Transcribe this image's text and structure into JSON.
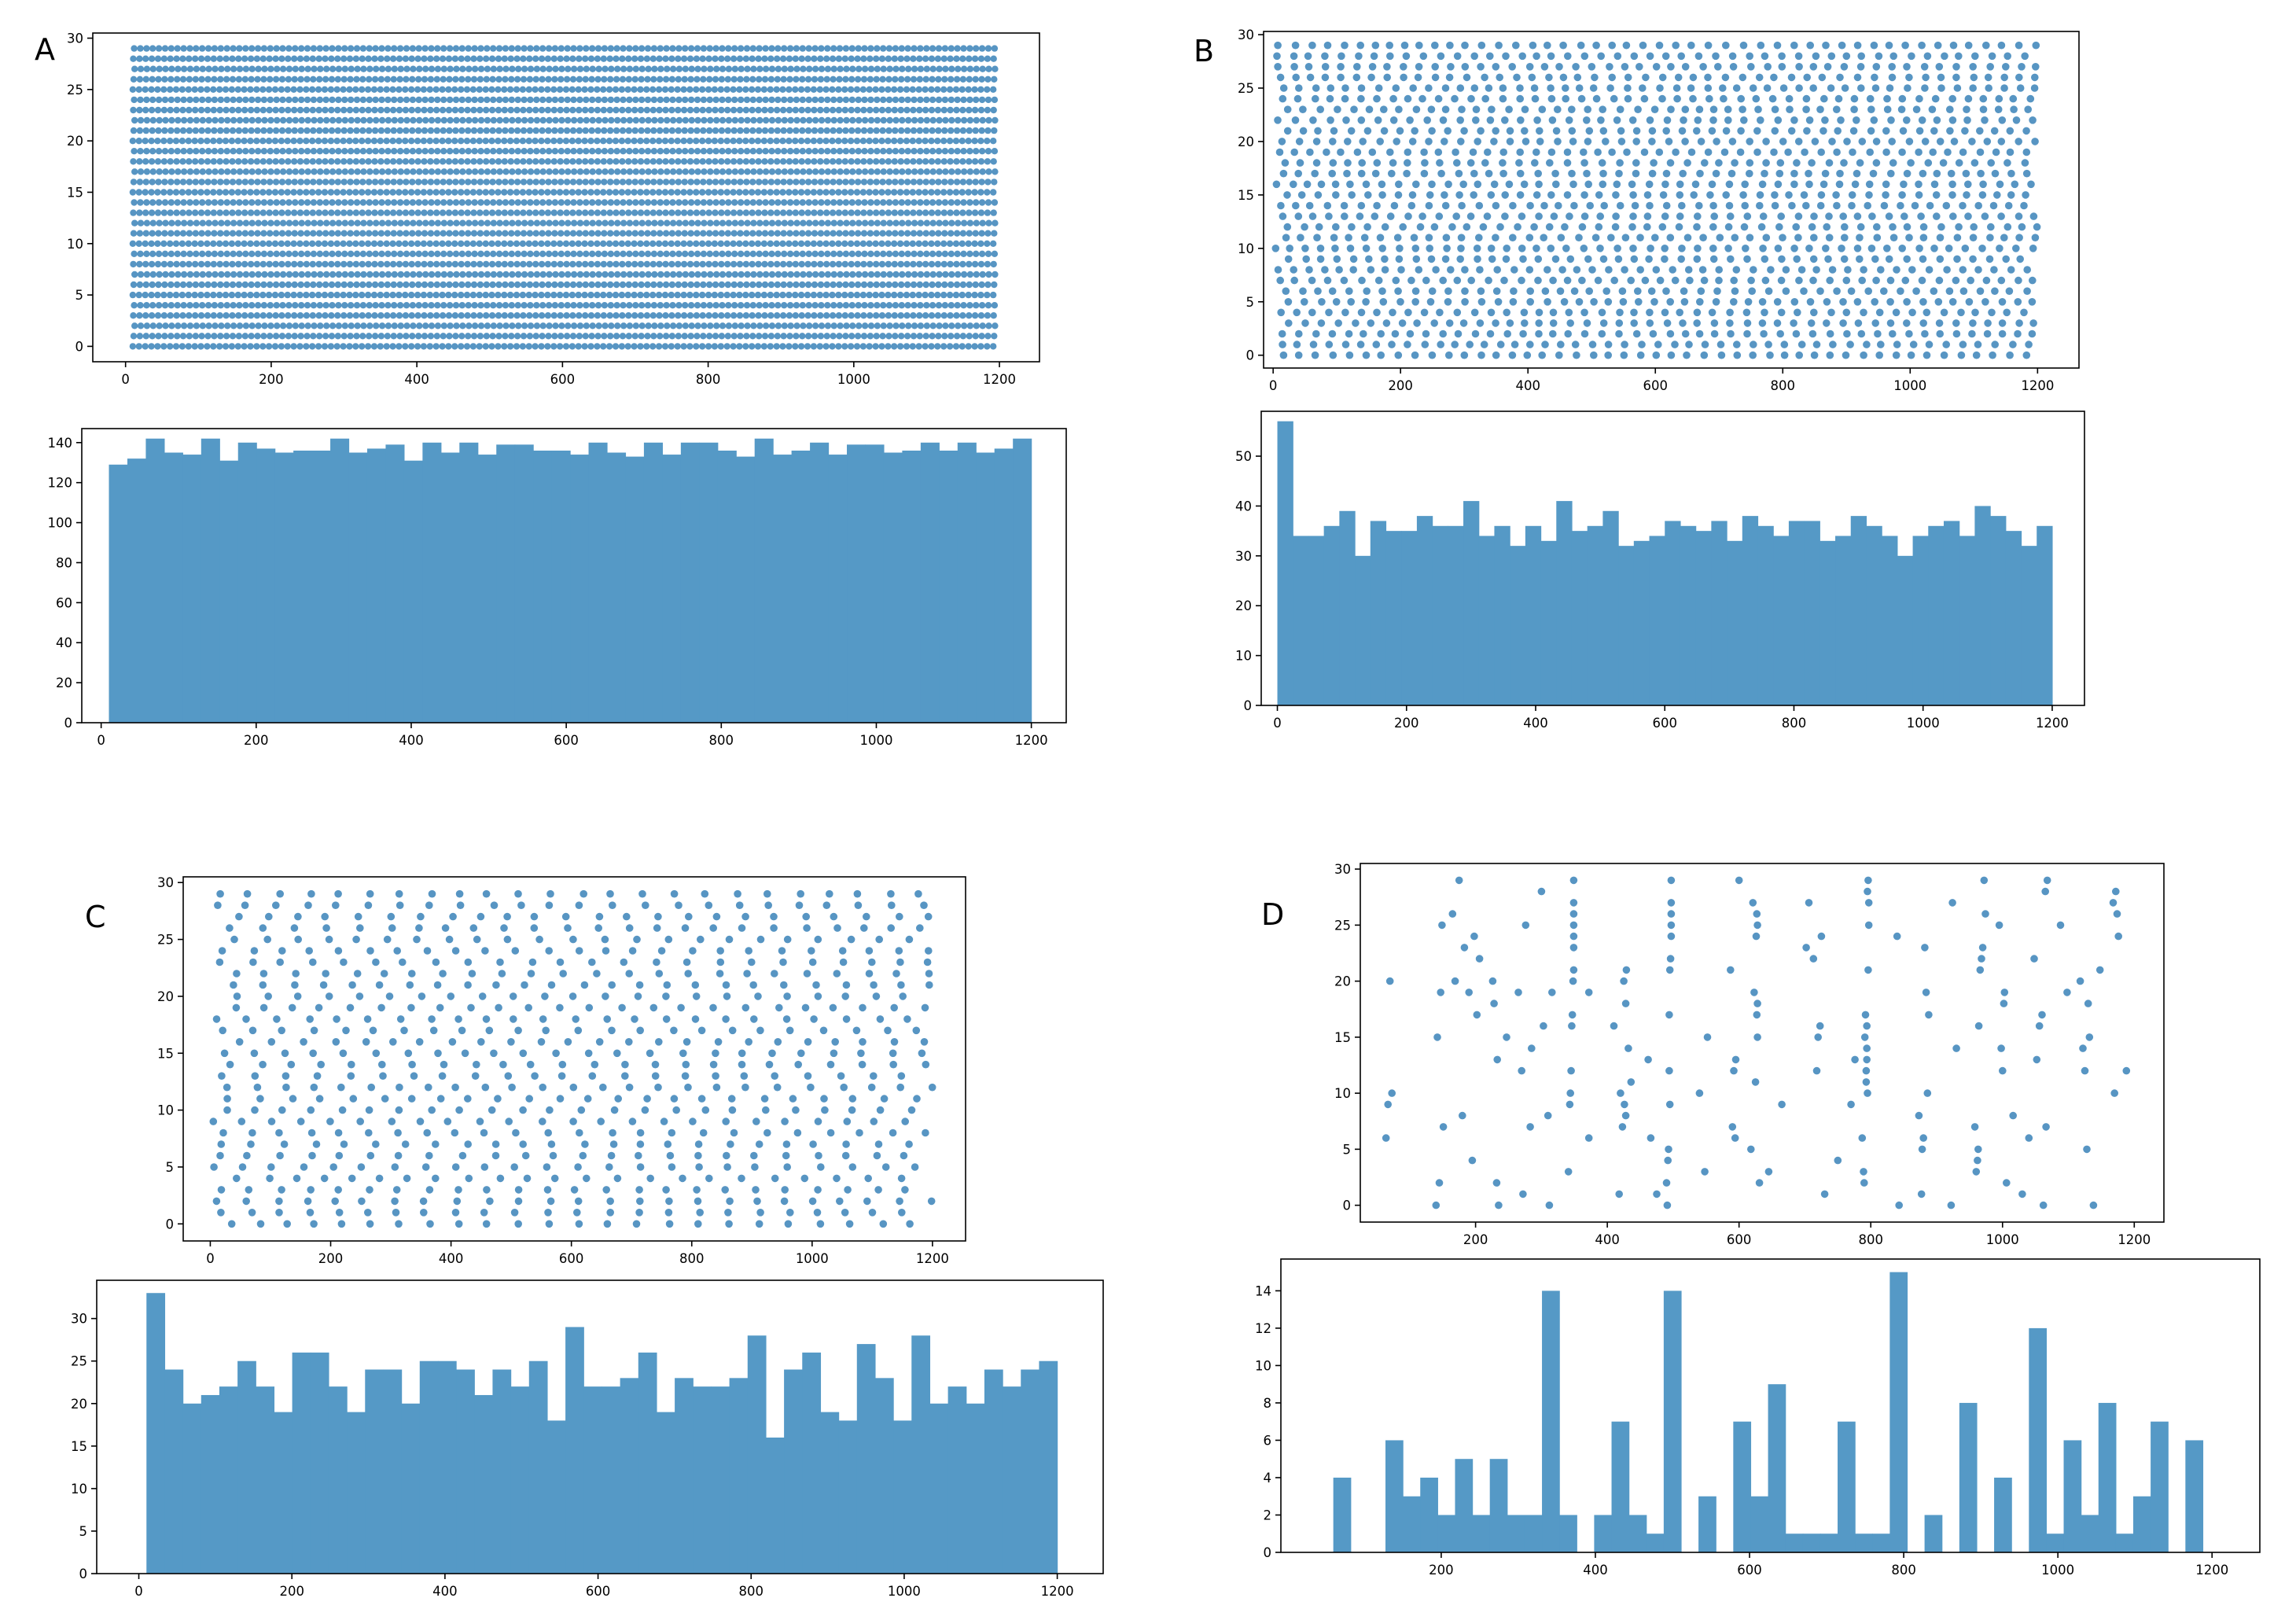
{
  "panel_labels": {
    "A": "A",
    "B": "B",
    "C": "C",
    "D": "D"
  },
  "chart_data": [
    {
      "panel": "A",
      "type": "scatter",
      "title": "",
      "xlabel": "",
      "ylabel": "",
      "xlim": [
        -45,
        1255
      ],
      "ylim": [
        -1.5,
        30.5
      ],
      "xticks": [
        0,
        200,
        400,
        600,
        800,
        1000,
        1200
      ],
      "yticks": [
        0,
        5,
        10,
        15,
        20,
        25,
        30
      ],
      "grid": false,
      "color": "#4e8fc0",
      "pattern": "regular lattice: one point every ~8.5 ms for each of the 30 neurons",
      "series": [
        {
          "y_range": [
            0,
            29
          ],
          "x_start": 10,
          "x_end": 1197,
          "spacing": 8.5
        }
      ]
    },
    {
      "panel": "A",
      "type": "bar",
      "title": "",
      "xlabel": "",
      "ylabel": "",
      "xlim": [
        -25,
        1245
      ],
      "ylim": [
        0,
        147
      ],
      "xticks": [
        0,
        200,
        400,
        600,
        800,
        1000,
        1200
      ],
      "yticks": [
        0,
        20,
        40,
        60,
        80,
        100,
        120,
        140
      ],
      "grid": false,
      "color": "#5599c6",
      "bin_edges_range": [
        10,
        1200
      ],
      "values": [
        129,
        132,
        142,
        135,
        134,
        142,
        131,
        140,
        137,
        135,
        136,
        136,
        142,
        135,
        137,
        139,
        131,
        140,
        135,
        140,
        134,
        139,
        139,
        136,
        136,
        134,
        140,
        135,
        133,
        140,
        134,
        140,
        140,
        136,
        133,
        142,
        134,
        136,
        140,
        134,
        139,
        139,
        135,
        136,
        140,
        136,
        140,
        135,
        137,
        142
      ]
    },
    {
      "panel": "B",
      "type": "scatter",
      "title": "",
      "xlabel": "",
      "ylabel": "",
      "xlim": [
        -15,
        1265
      ],
      "ylim": [
        -1.2,
        30.3
      ],
      "xticks": [
        0,
        200,
        400,
        600,
        800,
        1000,
        1200
      ],
      "yticks": [
        0,
        5,
        10,
        15,
        20,
        25,
        30
      ],
      "grid": false,
      "color": "#4e8fc0",
      "pattern": "jittered lattice: 30 neurons, ~47 points each with spacing ~25 ms and random phase",
      "series": [
        {
          "y_range": [
            0,
            29
          ],
          "x_start": 0,
          "x_end": 1200,
          "spacing": 25
        }
      ]
    },
    {
      "panel": "B",
      "type": "bar",
      "title": "",
      "xlabel": "",
      "ylabel": "",
      "xlim": [
        -25,
        1250
      ],
      "ylim": [
        0,
        59
      ],
      "xticks": [
        0,
        200,
        400,
        600,
        800,
        1000,
        1200
      ],
      "yticks": [
        0,
        10,
        20,
        30,
        40,
        50
      ],
      "grid": false,
      "color": "#5599c6",
      "bin_edges_range": [
        0,
        1200
      ],
      "values": [
        57,
        34,
        34,
        36,
        39,
        30,
        37,
        35,
        35,
        38,
        36,
        36,
        41,
        34,
        36,
        32,
        36,
        33,
        41,
        35,
        36,
        39,
        32,
        33,
        34,
        37,
        36,
        35,
        37,
        33,
        38,
        36,
        34,
        37,
        37,
        33,
        34,
        38,
        36,
        34,
        30,
        34,
        36,
        37,
        34,
        40,
        38,
        35,
        32,
        36
      ]
    },
    {
      "panel": "C",
      "type": "scatter",
      "title": "",
      "xlabel": "",
      "ylabel": "",
      "xlim": [
        -45,
        1255
      ],
      "ylim": [
        -1.5,
        30.5
      ],
      "xticks": [
        0,
        200,
        400,
        600,
        800,
        1000,
        1200
      ],
      "yticks": [
        0,
        5,
        10,
        15,
        20,
        25,
        30
      ],
      "grid": false,
      "color": "#4e8fc0",
      "pattern": "jittered lattice: 30 neurons, ~24 points each with spacing ~50 ms and random phase",
      "series": [
        {
          "y_range": [
            0,
            29
          ],
          "x_start": 0,
          "x_end": 1200,
          "spacing": 50
        }
      ]
    },
    {
      "panel": "C",
      "type": "bar",
      "title": "",
      "xlabel": "",
      "ylabel": "",
      "xlim": [
        -55,
        1260
      ],
      "ylim": [
        0,
        34.5
      ],
      "xticks": [
        0,
        200,
        400,
        600,
        800,
        1000,
        1200
      ],
      "yticks": [
        0,
        5,
        10,
        15,
        20,
        25,
        30
      ],
      "grid": false,
      "color": "#5599c6",
      "bin_edges_range": [
        10,
        1200
      ],
      "values": [
        33,
        24,
        20,
        21,
        22,
        25,
        22,
        19,
        26,
        26,
        22,
        19,
        24,
        24,
        20,
        25,
        25,
        24,
        21,
        24,
        22,
        25,
        18,
        29,
        22,
        22,
        23,
        26,
        19,
        23,
        22,
        22,
        23,
        28,
        16,
        24,
        26,
        19,
        18,
        27,
        23,
        18,
        28,
        20,
        22,
        20,
        24,
        22,
        24,
        25
      ]
    },
    {
      "panel": "D",
      "type": "scatter",
      "title": "",
      "xlabel": "",
      "ylabel": "",
      "xlim": [
        25,
        1245
      ],
      "ylim": [
        -1.5,
        30.5
      ],
      "xticks": [
        200,
        400,
        600,
        800,
        1000,
        1200
      ],
      "yticks": [
        0,
        5,
        10,
        15,
        20,
        25,
        30
      ],
      "grid": false,
      "color": "#4e8fc0",
      "points": [
        [
          64,
          6
        ],
        [
          67,
          9
        ],
        [
          70,
          20
        ],
        [
          73,
          10
        ],
        [
          140,
          0
        ],
        [
          142,
          15
        ],
        [
          145,
          2
        ],
        [
          147,
          19
        ],
        [
          149,
          25
        ],
        [
          151,
          7
        ],
        [
          165,
          26
        ],
        [
          169,
          20
        ],
        [
          175,
          29
        ],
        [
          180,
          8
        ],
        [
          183,
          23
        ],
        [
          190,
          19
        ],
        [
          195,
          4
        ],
        [
          198,
          24
        ],
        [
          202,
          17
        ],
        [
          206,
          22
        ],
        [
          226,
          20
        ],
        [
          228,
          18
        ],
        [
          232,
          2
        ],
        [
          233,
          13
        ],
        [
          235,
          0
        ],
        [
          247,
          15
        ],
        [
          265,
          19
        ],
        [
          270,
          12
        ],
        [
          272,
          1
        ],
        [
          276,
          25
        ],
        [
          283,
          7
        ],
        [
          285,
          14
        ],
        [
          300,
          28
        ],
        [
          303,
          16
        ],
        [
          310,
          8
        ],
        [
          312,
          0
        ],
        [
          316,
          19
        ],
        [
          341,
          3
        ],
        [
          343,
          9
        ],
        [
          344,
          10
        ],
        [
          345,
          12
        ],
        [
          346,
          16
        ],
        [
          347,
          17
        ],
        [
          348,
          20
        ],
        [
          349,
          21
        ],
        [
          349,
          23
        ],
        [
          349,
          24
        ],
        [
          349,
          25
        ],
        [
          349,
          26
        ],
        [
          349,
          27
        ],
        [
          349,
          29
        ],
        [
          372,
          6
        ],
        [
          372,
          19
        ],
        [
          410,
          16
        ],
        [
          418,
          1
        ],
        [
          420,
          10
        ],
        [
          423,
          7
        ],
        [
          425,
          20
        ],
        [
          426,
          9
        ],
        [
          428,
          8
        ],
        [
          428,
          18
        ],
        [
          429,
          21
        ],
        [
          432,
          14
        ],
        [
          436,
          11
        ],
        [
          462,
          13
        ],
        [
          466,
          6
        ],
        [
          475,
          1
        ],
        [
          490,
          2
        ],
        [
          491,
          0
        ],
        [
          492,
          4
        ],
        [
          493,
          5
        ],
        [
          494,
          12
        ],
        [
          494,
          17
        ],
        [
          495,
          9
        ],
        [
          495,
          21
        ],
        [
          496,
          22
        ],
        [
          497,
          24
        ],
        [
          497,
          25
        ],
        [
          497,
          26
        ],
        [
          497,
          27
        ],
        [
          497,
          29
        ],
        [
          540,
          10
        ],
        [
          548,
          3
        ],
        [
          552,
          15
        ],
        [
          587,
          21
        ],
        [
          590,
          7
        ],
        [
          592,
          12
        ],
        [
          594,
          6
        ],
        [
          595,
          13
        ],
        [
          600,
          29
        ],
        [
          618,
          5
        ],
        [
          621,
          27
        ],
        [
          623,
          19
        ],
        [
          625,
          11
        ],
        [
          626,
          24
        ],
        [
          627,
          26
        ],
        [
          627,
          17
        ],
        [
          628,
          15
        ],
        [
          628,
          18
        ],
        [
          628,
          25
        ],
        [
          631,
          2
        ],
        [
          645,
          3
        ],
        [
          665,
          9
        ],
        [
          702,
          23
        ],
        [
          706,
          27
        ],
        [
          713,
          22
        ],
        [
          718,
          12
        ],
        [
          720,
          15
        ],
        [
          723,
          16
        ],
        [
          725,
          24
        ],
        [
          730,
          1
        ],
        [
          750,
          4
        ],
        [
          770,
          9
        ],
        [
          776,
          13
        ],
        [
          787,
          6
        ],
        [
          789,
          3
        ],
        [
          790,
          2
        ],
        [
          791,
          15
        ],
        [
          792,
          17
        ],
        [
          793,
          11
        ],
        [
          793,
          12
        ],
        [
          794,
          13
        ],
        [
          794,
          14
        ],
        [
          794,
          16
        ],
        [
          795,
          10
        ],
        [
          795,
          28
        ],
        [
          796,
          29
        ],
        [
          796,
          21
        ],
        [
          797,
          27
        ],
        [
          797,
          25
        ],
        [
          840,
          24
        ],
        [
          843,
          0
        ],
        [
          873,
          8
        ],
        [
          877,
          1
        ],
        [
          878,
          5
        ],
        [
          880,
          6
        ],
        [
          882,
          23
        ],
        [
          884,
          19
        ],
        [
          886,
          10
        ],
        [
          888,
          17
        ],
        [
          922,
          0
        ],
        [
          924,
          27
        ],
        [
          930,
          14
        ],
        [
          958,
          7
        ],
        [
          960,
          3
        ],
        [
          962,
          4
        ],
        [
          963,
          5
        ],
        [
          964,
          16
        ],
        [
          966,
          21
        ],
        [
          968,
          22
        ],
        [
          970,
          23
        ],
        [
          972,
          29
        ],
        [
          974,
          26
        ],
        [
          995,
          25
        ],
        [
          998,
          14
        ],
        [
          1000,
          12
        ],
        [
          1002,
          18
        ],
        [
          1003,
          19
        ],
        [
          1006,
          2
        ],
        [
          1016,
          8
        ],
        [
          1030,
          1
        ],
        [
          1040,
          6
        ],
        [
          1048,
          22
        ],
        [
          1052,
          13
        ],
        [
          1056,
          16
        ],
        [
          1060,
          17
        ],
        [
          1062,
          0
        ],
        [
          1065,
          28
        ],
        [
          1066,
          7
        ],
        [
          1068,
          29
        ],
        [
          1088,
          25
        ],
        [
          1098,
          19
        ],
        [
          1118,
          20
        ],
        [
          1122,
          14
        ],
        [
          1125,
          12
        ],
        [
          1128,
          5
        ],
        [
          1130,
          18
        ],
        [
          1132,
          15
        ],
        [
          1138,
          0
        ],
        [
          1148,
          21
        ],
        [
          1168,
          27
        ],
        [
          1170,
          10
        ],
        [
          1172,
          28
        ],
        [
          1174,
          26
        ],
        [
          1176,
          24
        ],
        [
          1188,
          12
        ]
      ]
    },
    {
      "panel": "D",
      "type": "bar",
      "title": "",
      "xlabel": "",
      "ylabel": "",
      "xlim": [
        -8,
        1262
      ],
      "ylim": [
        0,
        15.7
      ],
      "xticks": [
        200,
        400,
        600,
        800,
        1000,
        1200
      ],
      "yticks": [
        0,
        2,
        4,
        6,
        8,
        10,
        12,
        14
      ],
      "grid": false,
      "color": "#5599c6",
      "bin_edges_range": [
        60,
        1188
      ],
      "values": [
        4,
        0,
        0,
        6,
        3,
        4,
        2,
        5,
        2,
        5,
        2,
        2,
        14,
        2,
        0,
        2,
        7,
        2,
        1,
        14,
        0,
        3,
        0,
        7,
        3,
        9,
        1,
        1,
        1,
        7,
        1,
        1,
        15,
        0,
        2,
        0,
        8,
        0,
        4,
        0,
        12,
        1,
        6,
        2,
        8,
        1,
        3,
        7,
        0,
        6
      ]
    }
  ]
}
